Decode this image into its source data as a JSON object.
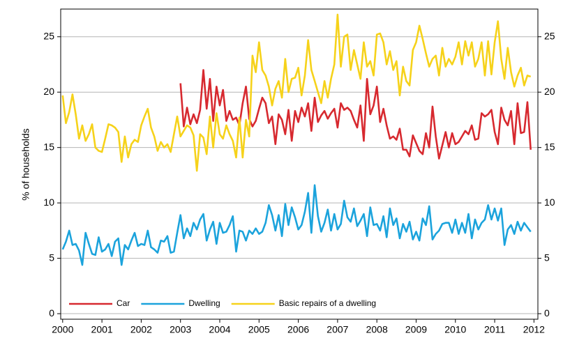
{
  "chart_data": {
    "type": "line",
    "y_label": "% of households",
    "xlim": [
      1999.95,
      2012.1
    ],
    "xticks": [
      2000,
      2001,
      2002,
      2003,
      2004,
      2005,
      2006,
      2007,
      2008,
      2009,
      2010,
      2011,
      2012
    ],
    "ylim": [
      -0.5,
      27.5
    ],
    "yticks": [
      0,
      5,
      10,
      15,
      20,
      25
    ],
    "grid": true,
    "legend": "lower left",
    "x": [
      2000,
      2000.083,
      2000.167,
      2000.25,
      2000.333,
      2000.417,
      2000.5,
      2000.583,
      2000.667,
      2000.75,
      2000.833,
      2000.917,
      2001,
      2001.083,
      2001.167,
      2001.25,
      2001.333,
      2001.417,
      2001.5,
      2001.583,
      2001.667,
      2001.75,
      2001.833,
      2001.917,
      2002,
      2002.083,
      2002.167,
      2002.25,
      2002.333,
      2002.417,
      2002.5,
      2002.583,
      2002.667,
      2002.75,
      2002.833,
      2002.917,
      2003,
      2003.083,
      2003.167,
      2003.25,
      2003.333,
      2003.417,
      2003.5,
      2003.583,
      2003.667,
      2003.75,
      2003.833,
      2003.917,
      2004,
      2004.083,
      2004.167,
      2004.25,
      2004.333,
      2004.417,
      2004.5,
      2004.583,
      2004.667,
      2004.75,
      2004.833,
      2004.917,
      2005,
      2005.083,
      2005.167,
      2005.25,
      2005.333,
      2005.417,
      2005.5,
      2005.583,
      2005.667,
      2005.75,
      2005.833,
      2005.917,
      2006,
      2006.083,
      2006.167,
      2006.25,
      2006.333,
      2006.417,
      2006.5,
      2006.583,
      2006.667,
      2006.75,
      2006.833,
      2006.917,
      2007,
      2007.083,
      2007.167,
      2007.25,
      2007.333,
      2007.417,
      2007.5,
      2007.583,
      2007.667,
      2007.75,
      2007.833,
      2007.917,
      2008,
      2008.083,
      2008.167,
      2008.25,
      2008.333,
      2008.417,
      2008.5,
      2008.583,
      2008.667,
      2008.75,
      2008.833,
      2008.917,
      2009,
      2009.083,
      2009.167,
      2009.25,
      2009.333,
      2009.417,
      2009.5,
      2009.583,
      2009.667,
      2009.75,
      2009.833,
      2009.917,
      2010,
      2010.083,
      2010.167,
      2010.25,
      2010.333,
      2010.417,
      2010.5,
      2010.583,
      2010.667,
      2010.75,
      2010.833,
      2010.917,
      2011,
      2011.083,
      2011.167,
      2011.25,
      2011.333,
      2011.417,
      2011.5,
      2011.583,
      2011.667,
      2011.75,
      2011.833,
      2011.917
    ],
    "series": [
      {
        "name": "Car",
        "color": "#d7292f",
        "values": [
          null,
          null,
          null,
          null,
          null,
          null,
          null,
          null,
          null,
          null,
          null,
          null,
          null,
          null,
          null,
          null,
          null,
          null,
          null,
          null,
          null,
          null,
          null,
          null,
          null,
          null,
          null,
          null,
          null,
          null,
          null,
          null,
          null,
          null,
          null,
          null,
          20.8,
          16.9,
          18.6,
          17.1,
          18.0,
          17.2,
          18.4,
          22.0,
          18.5,
          21.2,
          17.4,
          20.5,
          18.8,
          20.2,
          17.4,
          18.3,
          17.5,
          17.7,
          17.0,
          19.0,
          20.5,
          17.6,
          16.9,
          17.4,
          18.5,
          19.5,
          19.0,
          17.2,
          17.8,
          15.3,
          18.0,
          17.5,
          16.2,
          18.4,
          15.6,
          18.3,
          17.3,
          18.6,
          17.8,
          19.0,
          16.5,
          19.5,
          17.3,
          17.9,
          18.3,
          17.6,
          18.1,
          18.5,
          16.8,
          19.0,
          18.4,
          18.6,
          18.3,
          17.5,
          16.8,
          18.8,
          15.6,
          21.2,
          18.0,
          18.8,
          20.5,
          17.3,
          18.5,
          17.0,
          15.8,
          16.0,
          15.7,
          16.7,
          14.8,
          14.8,
          14.2,
          16.1,
          15.4,
          14.7,
          14.4,
          16.3,
          15.0,
          18.7,
          16.0,
          14.0,
          15.2,
          16.4,
          15.0,
          16.3,
          15.3,
          15.5,
          16.0,
          16.5,
          16.2,
          17.0,
          15.7,
          15.8,
          18.1,
          17.8,
          18.0,
          18.4,
          16.4,
          15.3,
          18.6,
          17.5,
          17.0,
          18.3,
          15.3,
          19.0,
          16.3,
          16.4,
          19.1,
          14.8
        ]
      },
      {
        "name": "Dwelling",
        "color": "#1ba3dc",
        "values": [
          5.8,
          6.5,
          7.5,
          6.2,
          6.3,
          5.7,
          4.4,
          7.3,
          6.3,
          5.4,
          5.3,
          6.9,
          5.6,
          5.8,
          6.3,
          5.2,
          6.5,
          6.8,
          4.4,
          6.2,
          5.8,
          6.6,
          7.3,
          6.1,
          6.3,
          6.2,
          7.5,
          6.0,
          5.8,
          5.5,
          6.6,
          6.5,
          7.0,
          5.5,
          5.6,
          7.3,
          8.9,
          6.8,
          7.7,
          7.0,
          8.2,
          7.6,
          8.5,
          9.0,
          6.6,
          7.6,
          8.3,
          6.3,
          8.2,
          7.3,
          7.4,
          8.0,
          8.8,
          5.6,
          7.5,
          7.4,
          6.6,
          7.5,
          7.2,
          7.7,
          7.2,
          7.4,
          8.2,
          9.8,
          8.9,
          7.5,
          8.9,
          7.0,
          9.9,
          8.0,
          9.6,
          8.7,
          7.6,
          8.0,
          9.2,
          10.9,
          7.3,
          11.6,
          8.8,
          7.4,
          8.2,
          9.4,
          7.5,
          9.0,
          7.6,
          8.1,
          10.2,
          8.7,
          8.3,
          9.5,
          7.9,
          8.4,
          9.0,
          7.0,
          9.6,
          8.0,
          8.1,
          7.5,
          8.8,
          6.9,
          9.5,
          8.0,
          8.6,
          6.8,
          8.1,
          7.4,
          8.3,
          6.7,
          7.4,
          6.6,
          8.6,
          8.0,
          9.7,
          6.7,
          7.2,
          7.5,
          8.1,
          8.2,
          8.2,
          7.3,
          8.5,
          7.2,
          8.2,
          7.3,
          9.0,
          6.8,
          8.5,
          7.6,
          8.2,
          8.5,
          9.8,
          8.5,
          9.5,
          8.4,
          9.5,
          6.2,
          7.6,
          8.0,
          7.2,
          8.3,
          7.5,
          8.2,
          7.8,
          7.4
        ]
      },
      {
        "name": "Basic repairs of a dwelling",
        "color": "#f6d21a",
        "values": [
          19.7,
          17.2,
          18.2,
          19.8,
          18.0,
          15.8,
          17.0,
          15.6,
          16.2,
          17.1,
          15.0,
          14.7,
          14.6,
          15.8,
          17.1,
          17.0,
          16.8,
          16.4,
          13.7,
          16.0,
          14.1,
          15.3,
          15.7,
          15.5,
          17.0,
          17.8,
          18.5,
          16.8,
          16.0,
          14.7,
          15.5,
          15.0,
          15.3,
          14.6,
          16.2,
          17.8,
          16.0,
          16.5,
          17.0,
          16.8,
          16.1,
          12.9,
          16.2,
          15.9,
          14.4,
          17.8,
          15.0,
          18.1,
          16.2,
          15.8,
          17.0,
          16.2,
          15.6,
          14.1,
          17.7,
          14.1,
          17.5,
          16.0,
          23.3,
          21.8,
          24.5,
          22.0,
          21.5,
          20.5,
          18.8,
          20.3,
          21.0,
          19.5,
          23.0,
          20.0,
          21.2,
          21.3,
          22.2,
          19.7,
          21.5,
          24.7,
          22.0,
          21.0,
          20.0,
          19.0,
          21.0,
          19.5,
          21.2,
          22.5,
          27.0,
          22.3,
          25.0,
          25.2,
          22.0,
          23.8,
          22.5,
          21.2,
          24.5,
          22.3,
          22.8,
          21.5,
          25.2,
          25.3,
          24.5,
          22.5,
          23.7,
          22.0,
          22.8,
          19.7,
          22.3,
          21.0,
          20.6,
          23.8,
          24.5,
          26.0,
          24.8,
          23.5,
          22.3,
          23.0,
          23.3,
          21.5,
          24.0,
          22.3,
          23.0,
          22.5,
          23.2,
          24.5,
          22.5,
          24.6,
          23.3,
          24.5,
          22.3,
          23.0,
          24.5,
          21.5,
          24.6,
          21.6,
          24.5,
          26.4,
          23.0,
          21.2,
          24.0,
          21.8,
          20.5,
          21.5,
          22.2,
          20.6,
          21.5,
          21.4
        ]
      }
    ]
  }
}
